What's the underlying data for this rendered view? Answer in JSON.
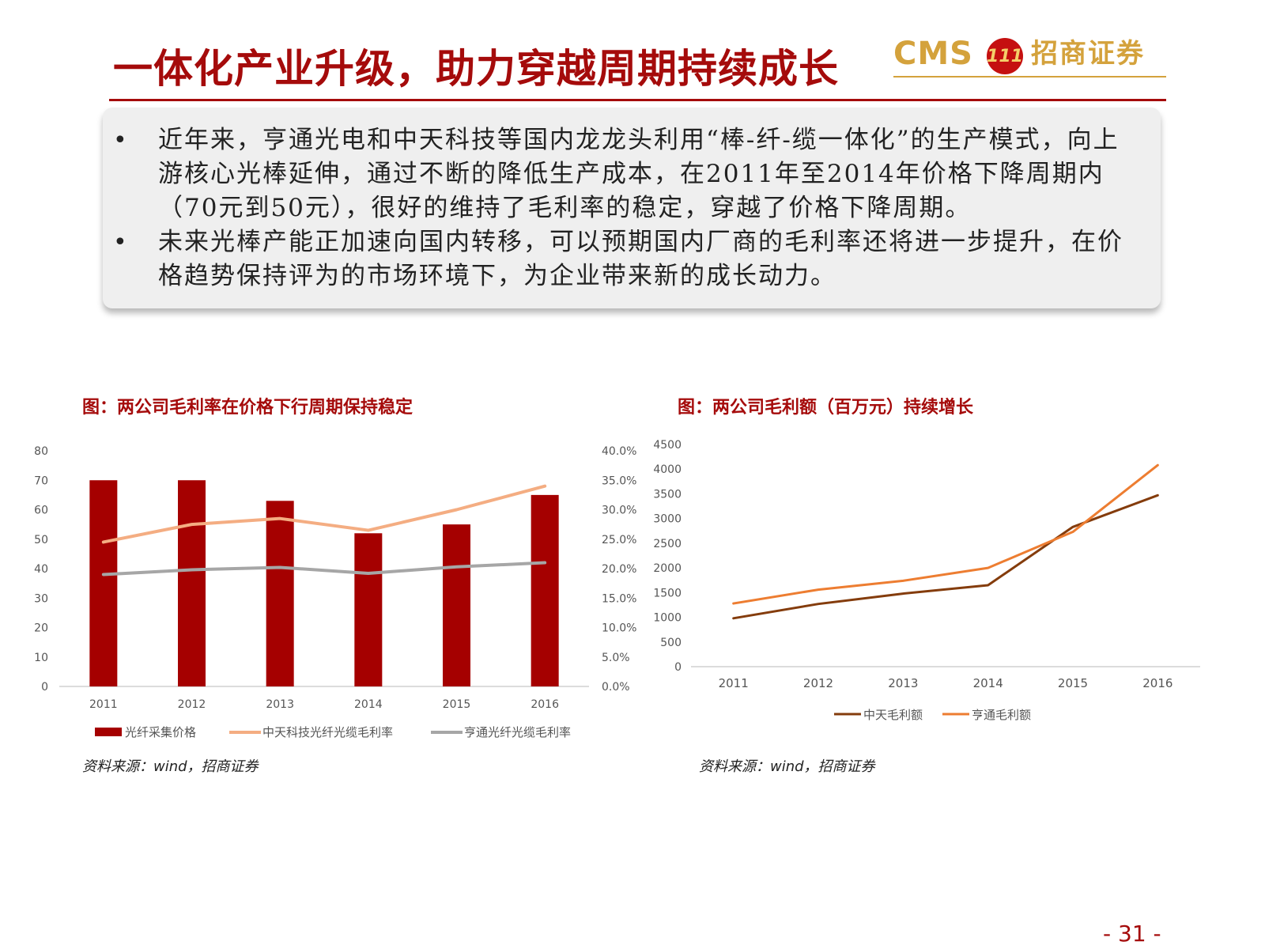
{
  "header": {
    "title": "一体化产业升级，助力穿越周期持续成长",
    "logo_cms": "CMS",
    "logo_badge": "111",
    "logo_cn": "招商证券"
  },
  "textbox": {
    "bullets": [
      "近年来，亨通光电和中天科技等国内龙龙头利用“棒-纤-缆一体化”的生产模式，向上游核心光棒延伸，通过不断的降低生产成本，在2011年至2014年价格下降周期内（70元到50元），很好的维持了毛利率的稳定，穿越了价格下降周期。",
      "未来光棒产能正加速向国内转移，可以预期国内厂商的毛利率还将进一步提升，在价格趋势保持评为的市场环境下，为企业带来新的成长动力。"
    ]
  },
  "figure_left": {
    "title": "图：两公司毛利率在价格下行周期保持稳定",
    "source": "资料来源：wind，招商证券"
  },
  "figure_right": {
    "title": "图：两公司毛利额（百万元）持续增长",
    "source": "资料来源：wind，招商证券"
  },
  "page_number": "- 31 -",
  "colors": {
    "brand_red": "#a50b0b",
    "bar_red": "#a50000",
    "light_orange": "#f4ad82",
    "gray": "#a6a6a6",
    "dark_brown": "#843c0c",
    "orange": "#ed7d31",
    "gold": "#d4a23c"
  },
  "chart_data": [
    {
      "type": "bar",
      "categories": [
        "2011",
        "2012",
        "2013",
        "2014",
        "2015",
        "2016"
      ],
      "series": [
        {
          "name": "光纤采集价格",
          "kind": "bar",
          "axis": "left",
          "values": [
            70,
            70,
            63,
            52,
            55,
            65
          ],
          "color": "#a50000"
        },
        {
          "name": "中天科技光纤光缆毛利率",
          "kind": "line",
          "axis": "right",
          "values": [
            24.5,
            27.5,
            28.5,
            26.5,
            30.0,
            34.0
          ],
          "color": "#f4ad82"
        },
        {
          "name": "亨通光纤光缆毛利率",
          "kind": "line",
          "axis": "right",
          "values": [
            19.0,
            19.8,
            20.2,
            19.2,
            20.3,
            21.0
          ],
          "color": "#a6a6a6"
        }
      ],
      "y_left": {
        "min": 0,
        "max": 80,
        "ticks": [
          "0",
          "10",
          "20",
          "30",
          "40",
          "50",
          "60",
          "70",
          "80"
        ]
      },
      "y_right": {
        "min": 0,
        "max": 40,
        "ticks": [
          "0.0%",
          "5.0%",
          "10.0%",
          "15.0%",
          "20.0%",
          "25.0%",
          "30.0%",
          "35.0%",
          "40.0%"
        ]
      },
      "grid": false,
      "legend_position": "bottom"
    },
    {
      "type": "line",
      "categories": [
        "2011",
        "2012",
        "2013",
        "2014",
        "2015",
        "2016"
      ],
      "series": [
        {
          "name": "中天毛利额",
          "values": [
            980,
            1270,
            1480,
            1650,
            2830,
            3470
          ],
          "color": "#843c0c"
        },
        {
          "name": "亨通毛利额",
          "values": [
            1280,
            1560,
            1740,
            2000,
            2730,
            4080
          ],
          "color": "#ed7d31"
        }
      ],
      "ylim": [
        0,
        4500
      ],
      "y_ticks": [
        "0",
        "500",
        "1000",
        "1500",
        "2000",
        "2500",
        "3000",
        "3500",
        "4000",
        "4500"
      ],
      "grid": false,
      "legend_position": "bottom"
    }
  ]
}
